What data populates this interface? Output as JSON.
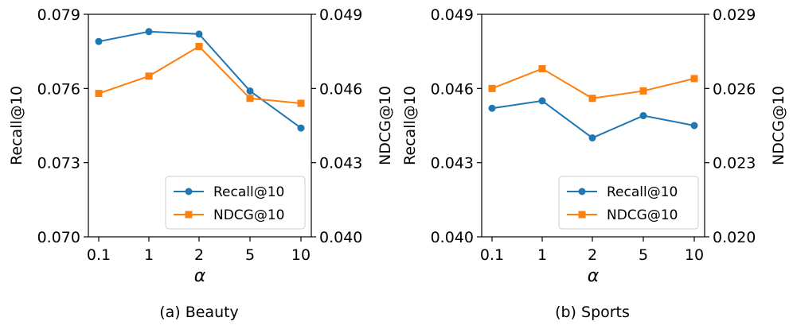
{
  "chart_data": [
    {
      "type": "line",
      "caption": "(a) Beauty",
      "xlabel": "α",
      "ylabel_left": "Recall@10",
      "ylabel_right": "NDCG@10",
      "categories": [
        "0.1",
        "1",
        "2",
        "5",
        "10"
      ],
      "y_left": {
        "range": [
          0.07,
          0.079
        ],
        "ticks": [
          "0.070",
          "0.073",
          "0.076",
          "0.079"
        ]
      },
      "y_right": {
        "range": [
          0.04,
          0.049
        ],
        "ticks": [
          "0.040",
          "0.043",
          "0.046",
          "0.049"
        ]
      },
      "legend_position": "lower-right",
      "series": [
        {
          "name": "Recall@10",
          "axis": "left",
          "marker": "circle",
          "color": "#1f77b4",
          "values": [
            0.0779,
            0.0783,
            0.0782,
            0.0759,
            0.0744
          ]
        },
        {
          "name": "NDCG@10",
          "axis": "right",
          "marker": "square",
          "color": "#ff7f0e",
          "values": [
            0.0458,
            0.0465,
            0.0477,
            0.0456,
            0.0454
          ]
        }
      ]
    },
    {
      "type": "line",
      "caption": "(b) Sports",
      "xlabel": "α",
      "ylabel_left": "Recall@10",
      "ylabel_right": "NDCG@10",
      "categories": [
        "0.1",
        "1",
        "2",
        "5",
        "10"
      ],
      "y_left": {
        "range": [
          0.04,
          0.049
        ],
        "ticks": [
          "0.040",
          "0.043",
          "0.046",
          "0.049"
        ]
      },
      "y_right": {
        "range": [
          0.02,
          0.029
        ],
        "ticks": [
          "0.020",
          "0.023",
          "0.026",
          "0.029"
        ]
      },
      "legend_position": "lower-right",
      "series": [
        {
          "name": "Recall@10",
          "axis": "left",
          "marker": "circle",
          "color": "#1f77b4",
          "values": [
            0.0452,
            0.0455,
            0.044,
            0.0449,
            0.0445
          ]
        },
        {
          "name": "NDCG@10",
          "axis": "right",
          "marker": "square",
          "color": "#ff7f0e",
          "values": [
            0.026,
            0.0268,
            0.0256,
            0.0259,
            0.0264
          ]
        }
      ]
    }
  ]
}
